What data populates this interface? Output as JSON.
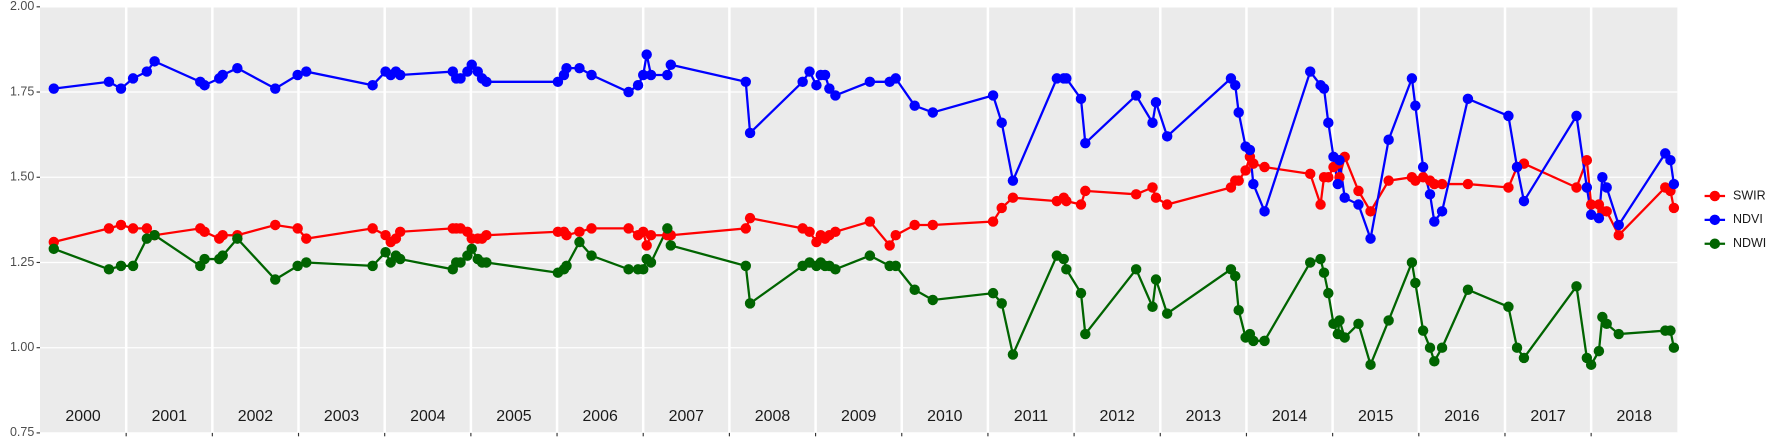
{
  "chart_data": {
    "type": "line",
    "x": [
      2000.16,
      2000.8,
      2000.94,
      2001.08,
      2001.24,
      2001.33,
      2001.86,
      2001.91,
      2002.08,
      2002.12,
      2002.29,
      2002.73,
      2002.99,
      2003.09,
      2003.86,
      2004.01,
      2004.07,
      2004.13,
      2004.18,
      2004.79,
      2004.83,
      2004.88,
      2004.96,
      2005.01,
      2005.08,
      2005.13,
      2005.18,
      2006.01,
      2006.08,
      2006.11,
      2006.26,
      2006.4,
      2006.83,
      2006.94,
      2007.0,
      2007.04,
      2007.09,
      2007.28,
      2007.32,
      2008.19,
      2008.24,
      2008.85,
      2008.93,
      2009.01,
      2009.06,
      2009.11,
      2009.16,
      2009.23,
      2009.63,
      2009.86,
      2009.93,
      2010.15,
      2010.36,
      2011.06,
      2011.16,
      2011.29,
      2011.8,
      2011.88,
      2011.91,
      2012.08,
      2012.13,
      2012.72,
      2012.91,
      2012.95,
      2013.08,
      2013.82,
      2013.87,
      2013.91,
      2013.99,
      2014.04,
      2014.08,
      2014.21,
      2014.74,
      2014.86,
      2014.9,
      2014.95,
      2015.01,
      2015.06,
      2015.08,
      2015.14,
      2015.3,
      2015.44,
      2015.65,
      2015.92,
      2015.96,
      2016.05,
      2016.13,
      2016.18,
      2016.27,
      2016.57,
      2017.04,
      2017.14,
      2017.22,
      2017.83,
      2017.95,
      2018.0,
      2018.09,
      2018.13,
      2018.18,
      2018.32,
      2018.86,
      2018.92,
      2018.96
    ],
    "series": [
      {
        "name": "SWIR",
        "color": "#ff0000",
        "values": [
          1.31,
          1.35,
          1.36,
          1.35,
          1.35,
          1.33,
          1.35,
          1.34,
          1.32,
          1.33,
          1.33,
          1.36,
          1.35,
          1.32,
          1.35,
          1.33,
          1.31,
          1.32,
          1.34,
          1.35,
          1.35,
          1.35,
          1.34,
          1.32,
          1.32,
          1.32,
          1.33,
          1.34,
          1.34,
          1.33,
          1.34,
          1.35,
          1.35,
          1.33,
          1.34,
          1.3,
          1.33,
          1.33,
          1.33,
          1.35,
          1.38,
          1.35,
          1.34,
          1.31,
          1.33,
          1.32,
          1.33,
          1.34,
          1.37,
          1.3,
          1.33,
          1.36,
          1.36,
          1.37,
          1.41,
          1.44,
          1.43,
          1.44,
          1.43,
          1.42,
          1.46,
          1.45,
          1.47,
          1.44,
          1.42,
          1.47,
          1.49,
          1.49,
          1.52,
          1.56,
          1.54,
          1.53,
          1.51,
          1.42,
          1.5,
          1.5,
          1.53,
          1.54,
          1.5,
          1.56,
          1.46,
          1.4,
          1.49,
          1.5,
          1.49,
          1.5,
          1.49,
          1.48,
          1.48,
          1.48,
          1.47,
          1.53,
          1.54,
          1.47,
          1.55,
          1.42,
          1.42,
          1.4,
          1.4,
          1.33,
          1.47,
          1.46,
          1.41
        ]
      },
      {
        "name": "NDVI",
        "color": "#0000ff",
        "values": [
          1.76,
          1.78,
          1.76,
          1.79,
          1.81,
          1.84,
          1.78,
          1.77,
          1.79,
          1.8,
          1.82,
          1.76,
          1.8,
          1.81,
          1.77,
          1.81,
          1.8,
          1.81,
          1.8,
          1.81,
          1.79,
          1.79,
          1.81,
          1.83,
          1.81,
          1.79,
          1.78,
          1.78,
          1.8,
          1.82,
          1.82,
          1.8,
          1.75,
          1.77,
          1.8,
          1.86,
          1.8,
          1.8,
          1.83,
          1.78,
          1.63,
          1.78,
          1.81,
          1.77,
          1.8,
          1.8,
          1.76,
          1.74,
          1.78,
          1.78,
          1.79,
          1.71,
          1.69,
          1.74,
          1.66,
          1.49,
          1.79,
          1.79,
          1.79,
          1.73,
          1.6,
          1.74,
          1.66,
          1.72,
          1.62,
          1.79,
          1.77,
          1.69,
          1.59,
          1.58,
          1.48,
          1.4,
          1.81,
          1.77,
          1.76,
          1.66,
          1.56,
          1.48,
          1.55,
          1.44,
          1.42,
          1.32,
          1.61,
          1.79,
          1.71,
          1.53,
          1.45,
          1.37,
          1.4,
          1.73,
          1.68,
          1.53,
          1.43,
          1.68,
          1.47,
          1.39,
          1.38,
          1.5,
          1.47,
          1.36,
          1.57,
          1.55,
          1.48
        ]
      },
      {
        "name": "NDWI",
        "color": "#006400",
        "values": [
          1.29,
          1.23,
          1.24,
          1.24,
          1.32,
          1.33,
          1.24,
          1.26,
          1.26,
          1.27,
          1.32,
          1.2,
          1.24,
          1.25,
          1.24,
          1.28,
          1.25,
          1.27,
          1.26,
          1.23,
          1.25,
          1.25,
          1.27,
          1.29,
          1.26,
          1.25,
          1.25,
          1.22,
          1.23,
          1.24,
          1.31,
          1.27,
          1.23,
          1.23,
          1.23,
          1.26,
          1.25,
          1.35,
          1.3,
          1.24,
          1.13,
          1.24,
          1.25,
          1.24,
          1.25,
          1.24,
          1.24,
          1.23,
          1.27,
          1.24,
          1.24,
          1.17,
          1.14,
          1.16,
          1.13,
          0.98,
          1.27,
          1.26,
          1.23,
          1.16,
          1.04,
          1.23,
          1.12,
          1.2,
          1.1,
          1.23,
          1.21,
          1.11,
          1.03,
          1.04,
          1.02,
          1.02,
          1.25,
          1.26,
          1.22,
          1.16,
          1.07,
          1.04,
          1.08,
          1.03,
          1.07,
          0.95,
          1.08,
          1.25,
          1.19,
          1.05,
          1.0,
          0.96,
          1.0,
          1.17,
          1.12,
          1.0,
          0.97,
          1.18,
          0.97,
          0.95,
          0.99,
          1.09,
          1.07,
          1.04,
          1.05,
          1.05,
          1.0
        ]
      }
    ],
    "xlim": [
      2000,
      2019
    ],
    "xticks": [
      2001,
      2002,
      2003,
      2004,
      2005,
      2006,
      2007,
      2008,
      2009,
      2010,
      2011,
      2012,
      2013,
      2014,
      2015,
      2016,
      2017,
      2018
    ],
    "year_labels": [
      2000,
      2001,
      2002,
      2003,
      2004,
      2005,
      2006,
      2007,
      2008,
      2009,
      2010,
      2011,
      2012,
      2013,
      2014,
      2015,
      2016,
      2017,
      2018
    ],
    "ylim": [
      0.75,
      2.0
    ],
    "yticks": [
      {
        "value": 0.75,
        "label": "0.75"
      },
      {
        "value": 1.0,
        "label": "1.00"
      },
      {
        "value": 1.25,
        "label": "1.25"
      },
      {
        "value": 1.5,
        "label": "1.50"
      },
      {
        "value": 1.75,
        "label": "1.75"
      },
      {
        "value": 2.0,
        "label": "2.00"
      }
    ],
    "grid": true,
    "legend": "right"
  }
}
